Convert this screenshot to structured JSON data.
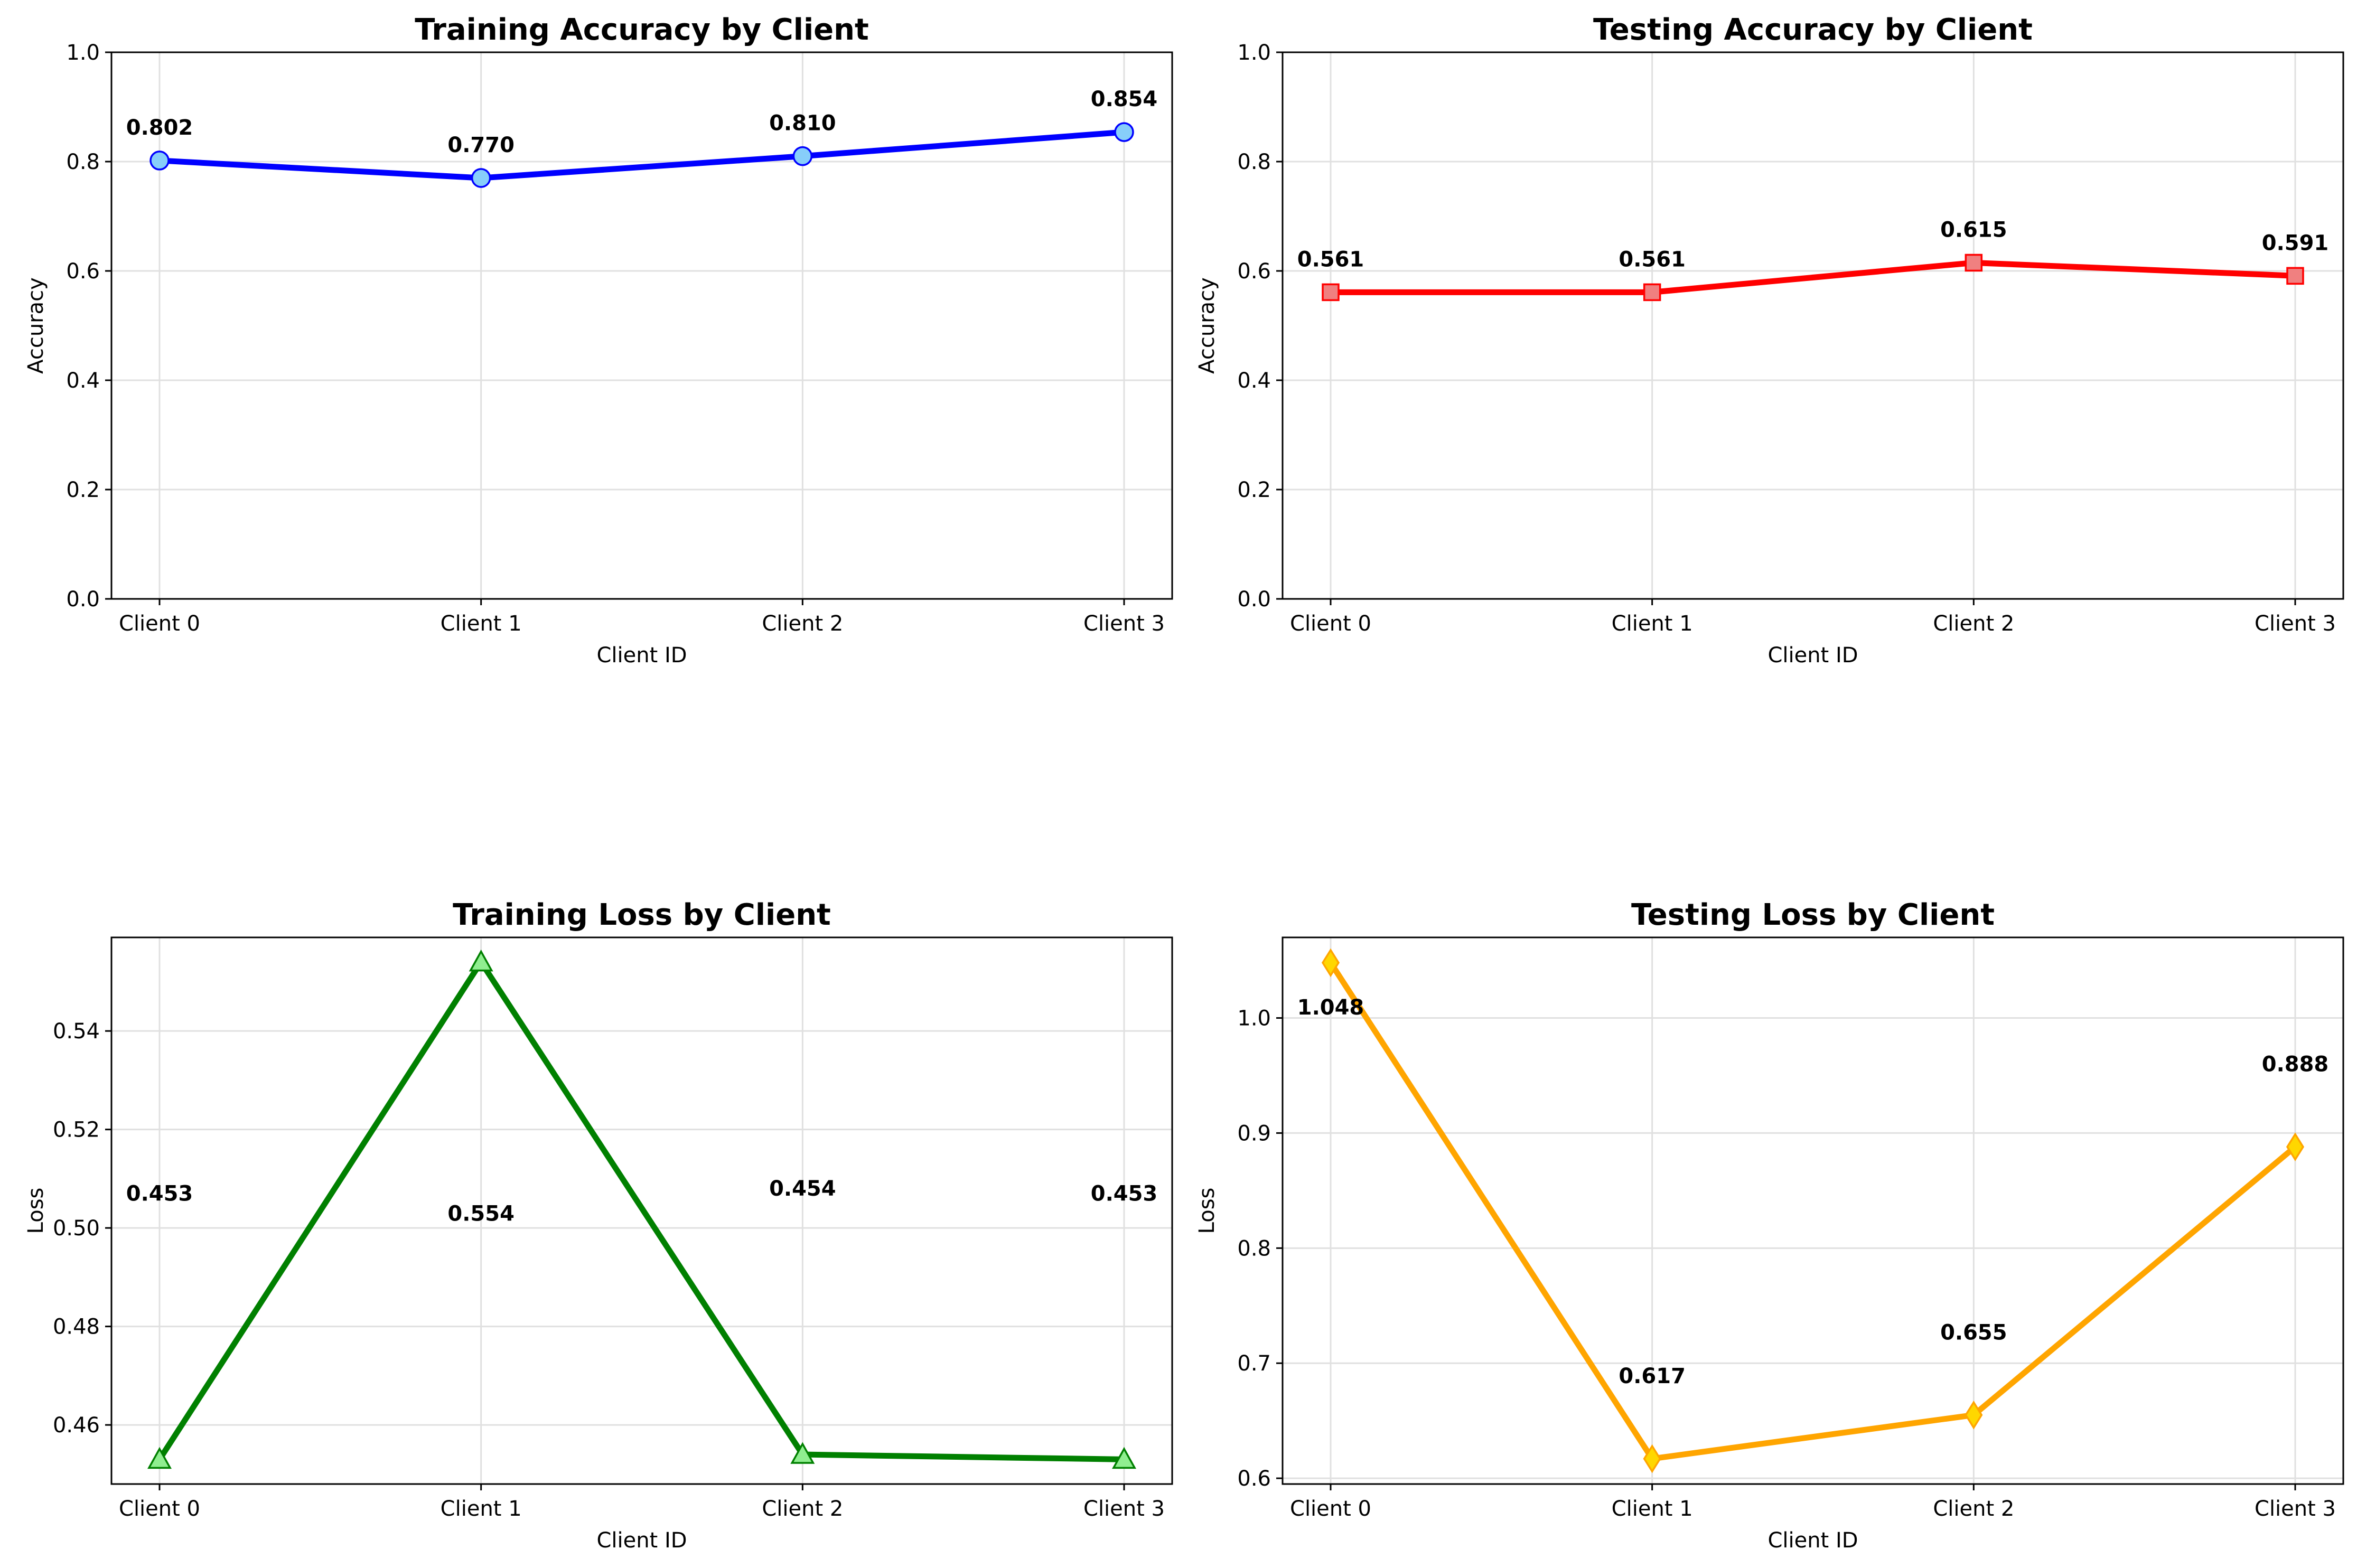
{
  "chart_data": [
    {
      "type": "line",
      "title": "Training Accuracy by Client",
      "xlabel": "Client ID",
      "ylabel": "Accuracy",
      "categories": [
        "Client 0",
        "Client 1",
        "Client 2",
        "Client 3"
      ],
      "values": [
        0.802,
        0.77,
        0.81,
        0.854
      ],
      "labels": [
        "0.802",
        "0.770",
        "0.810",
        "0.854"
      ],
      "ylim": [
        0,
        1.0
      ],
      "yticks": [
        "0.0",
        "0.2",
        "0.4",
        "0.6",
        "0.8",
        "1.0"
      ],
      "grid": true,
      "marker": "circle",
      "color": "#0000ff",
      "marker_fill": "#87cefa"
    },
    {
      "type": "line",
      "title": "Testing Accuracy by Client",
      "xlabel": "Client ID",
      "ylabel": "Accuracy",
      "categories": [
        "Client 0",
        "Client 1",
        "Client 2",
        "Client 3"
      ],
      "values": [
        0.561,
        0.561,
        0.615,
        0.591
      ],
      "labels": [
        "0.561",
        "0.561",
        "0.615",
        "0.591"
      ],
      "ylim": [
        0,
        1.0
      ],
      "yticks": [
        "0.0",
        "0.2",
        "0.4",
        "0.6",
        "0.8",
        "1.0"
      ],
      "grid": true,
      "marker": "square",
      "color": "#ff0000",
      "marker_fill": "#f08080"
    },
    {
      "type": "line",
      "title": "Training Loss by Client",
      "xlabel": "Client ID",
      "ylabel": "Loss",
      "categories": [
        "Client 0",
        "Client 1",
        "Client 2",
        "Client 3"
      ],
      "values": [
        0.453,
        0.554,
        0.454,
        0.453
      ],
      "labels": [
        "0.453",
        "0.554",
        "0.454",
        "0.453"
      ],
      "ylim": [
        0.448,
        0.559
      ],
      "yticks": [
        "0.46",
        "0.48",
        "0.50",
        "0.52",
        "0.54"
      ],
      "grid": true,
      "marker": "triangle",
      "color": "#008000",
      "marker_fill": "#90ee90"
    },
    {
      "type": "line",
      "title": "Testing Loss by Client",
      "xlabel": "Client ID",
      "ylabel": "Loss",
      "categories": [
        "Client 0",
        "Client 1",
        "Client 2",
        "Client 3"
      ],
      "values": [
        1.048,
        0.617,
        0.655,
        0.888
      ],
      "labels": [
        "1.048",
        "0.617",
        "0.655",
        "0.888"
      ],
      "ylim": [
        0.595,
        1.07
      ],
      "yticks": [
        "0.6",
        "0.7",
        "0.8",
        "0.9",
        "1.0"
      ],
      "grid": true,
      "marker": "diamond",
      "color": "#ffa500",
      "marker_fill": "#ffd700"
    }
  ]
}
